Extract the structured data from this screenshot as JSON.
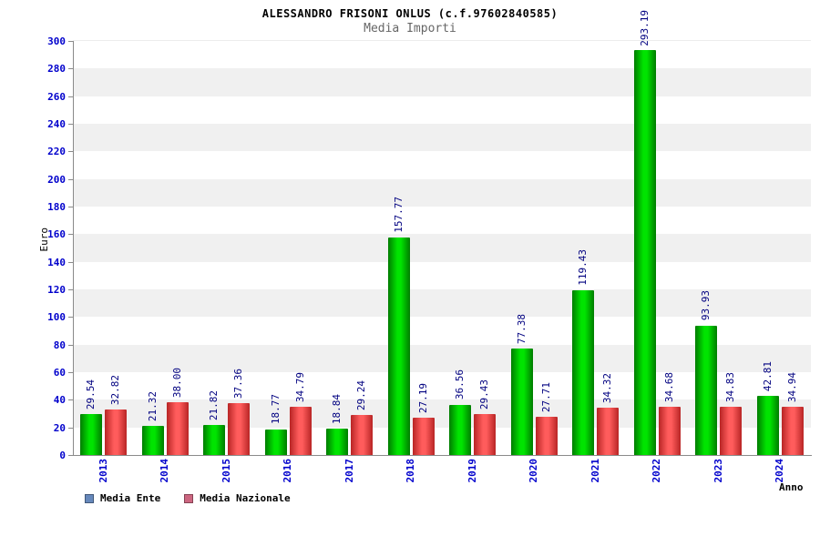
{
  "title": "ALESSANDRO FRISONI ONLUS (c.f.97602840585)",
  "subtitle": "Media Importi",
  "chart_data": {
    "type": "bar",
    "title": "ALESSANDRO FRISONI ONLUS (c.f.97602840585)",
    "subtitle": "Media Importi",
    "xlabel": "Anno",
    "ylabel": "Euro",
    "ylim": [
      0,
      300
    ],
    "ytick_step": 20,
    "grid": "horizontal-bands",
    "legend_position": "bottom-left",
    "categories": [
      "2013",
      "2014",
      "2015",
      "2016",
      "2017",
      "2018",
      "2019",
      "2020",
      "2021",
      "2022",
      "2023",
      "2024"
    ],
    "series": [
      {
        "name": "Media Ente",
        "color_center": "#00e400",
        "color_edge": "#007c00",
        "values": [
          "29.54",
          "21.32",
          "21.82",
          "18.77",
          "18.84",
          "157.77",
          "36.56",
          "77.38",
          "119.43",
          "293.19",
          "93.93",
          "42.81"
        ]
      },
      {
        "name": "Media Nazionale",
        "color_center": "#ff5c5c",
        "color_edge": "#b82525",
        "values": [
          "32.82",
          "38.00",
          "37.36",
          "34.79",
          "29.24",
          "27.19",
          "29.43",
          "27.71",
          "34.32",
          "34.68",
          "34.83",
          "34.94"
        ]
      }
    ],
    "legend": [
      {
        "label": "Media Ente",
        "color": "#6688bb"
      },
      {
        "label": "Media Nazionale",
        "color": "#cc6680"
      }
    ],
    "colors": {
      "ytick_label": "#0000cc",
      "xtick_label": "#0000cc",
      "value_label": "#000080",
      "axis": "#8a8a8a",
      "band": "#f0f0f0"
    }
  }
}
